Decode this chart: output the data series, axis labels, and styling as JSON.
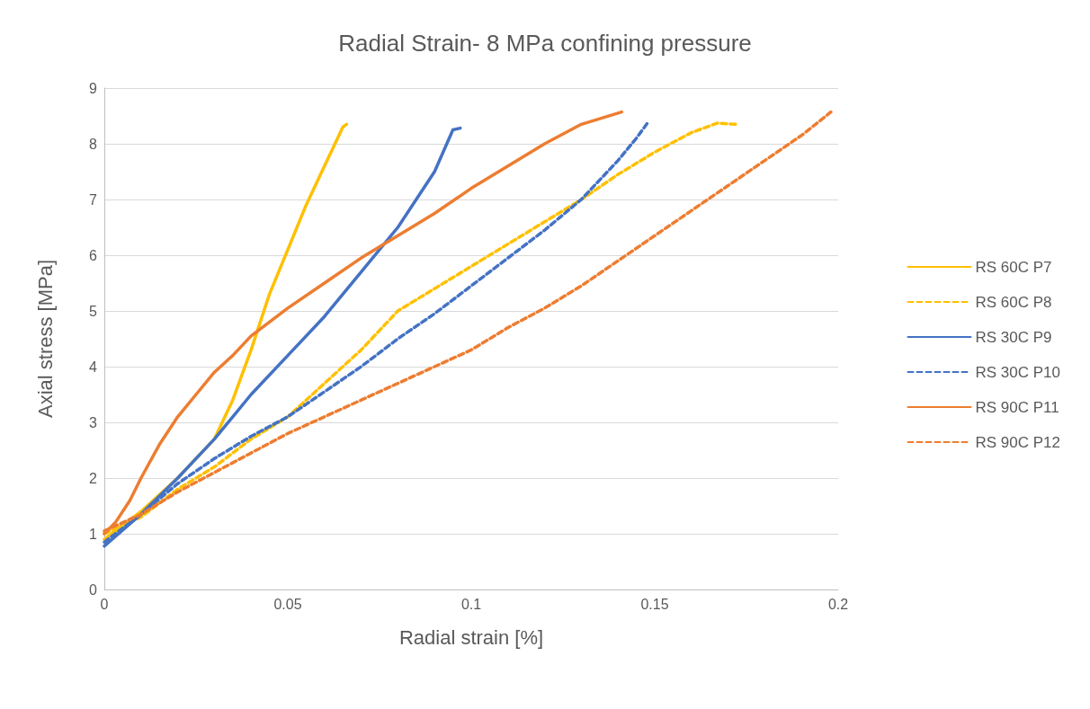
{
  "chart_data": {
    "type": "line",
    "title": "Radial Strain- 8 MPa confining pressure",
    "xlabel": "Radial strain [%]",
    "ylabel": "Axial stress [MPa]",
    "xlim": [
      0,
      0.2
    ],
    "xticks": [
      0,
      0.05,
      0.1,
      0.15,
      0.2
    ],
    "ylim": [
      0,
      9
    ],
    "yticks": [
      0,
      1,
      2,
      3,
      4,
      5,
      6,
      7,
      8,
      9
    ],
    "grid": "y",
    "legend": "right",
    "marker": "none",
    "series": [
      {
        "name": "RS 60C P7",
        "color": "#ffc000",
        "line_style": "solid",
        "x": [
          0,
          0.01,
          0.02,
          0.03,
          0.035,
          0.04,
          0.045,
          0.05,
          0.055,
          0.06,
          0.065,
          0.066
        ],
        "values": [
          0.9,
          1.4,
          2.0,
          2.7,
          3.4,
          4.3,
          5.3,
          6.1,
          6.9,
          7.6,
          8.3,
          8.35
        ]
      },
      {
        "name": "RS 60C P8",
        "color": "#ffc000",
        "line_style": "dashed",
        "x": [
          0,
          0.01,
          0.02,
          0.03,
          0.04,
          0.05,
          0.06,
          0.07,
          0.08,
          0.085,
          0.1,
          0.12,
          0.13,
          0.14,
          0.15,
          0.16,
          0.167,
          0.172
        ],
        "values": [
          1.0,
          1.3,
          1.8,
          2.2,
          2.7,
          3.1,
          3.7,
          4.3,
          5.0,
          5.2,
          5.8,
          6.6,
          7.0,
          7.45,
          7.85,
          8.2,
          8.37,
          8.35
        ]
      },
      {
        "name": "RS 30C P9",
        "color": "#4472c4",
        "line_style": "solid",
        "x": [
          0,
          0.01,
          0.02,
          0.03,
          0.04,
          0.05,
          0.06,
          0.07,
          0.08,
          0.09,
          0.095,
          0.097
        ],
        "values": [
          0.78,
          1.35,
          2.0,
          2.7,
          3.5,
          4.2,
          4.9,
          5.7,
          6.5,
          7.5,
          8.25,
          8.28
        ]
      },
      {
        "name": "RS 30C P10",
        "color": "#4472c4",
        "line_style": "dashed",
        "x": [
          0,
          0.01,
          0.02,
          0.03,
          0.04,
          0.05,
          0.06,
          0.07,
          0.08,
          0.09,
          0.1,
          0.11,
          0.12,
          0.13,
          0.14,
          0.145,
          0.148
        ],
        "values": [
          0.85,
          1.35,
          1.9,
          2.35,
          2.75,
          3.1,
          3.55,
          4.0,
          4.5,
          4.95,
          5.45,
          5.95,
          6.45,
          7.0,
          7.7,
          8.1,
          8.37
        ]
      },
      {
        "name": "RS 90C P11",
        "color": "#ed7d31",
        "line_style": "solid",
        "x": [
          0,
          0.003,
          0.007,
          0.01,
          0.015,
          0.02,
          0.025,
          0.03,
          0.035,
          0.04,
          0.05,
          0.06,
          0.07,
          0.08,
          0.09,
          0.1,
          0.11,
          0.12,
          0.13,
          0.141
        ],
        "values": [
          1.0,
          1.2,
          1.6,
          2.0,
          2.6,
          3.1,
          3.5,
          3.9,
          4.2,
          4.55,
          5.05,
          5.5,
          5.95,
          6.35,
          6.75,
          7.2,
          7.6,
          8.0,
          8.35,
          8.57
        ]
      },
      {
        "name": "RS 90C P12",
        "color": "#ed7d31",
        "line_style": "dashed",
        "x": [
          0,
          0.01,
          0.02,
          0.03,
          0.04,
          0.05,
          0.06,
          0.07,
          0.08,
          0.09,
          0.1,
          0.11,
          0.12,
          0.13,
          0.14,
          0.15,
          0.16,
          0.17,
          0.18,
          0.19,
          0.198
        ],
        "values": [
          1.05,
          1.35,
          1.75,
          2.1,
          2.45,
          2.8,
          3.1,
          3.4,
          3.7,
          4.0,
          4.3,
          4.7,
          5.05,
          5.45,
          5.9,
          6.35,
          6.8,
          7.25,
          7.7,
          8.15,
          8.57
        ]
      }
    ]
  }
}
